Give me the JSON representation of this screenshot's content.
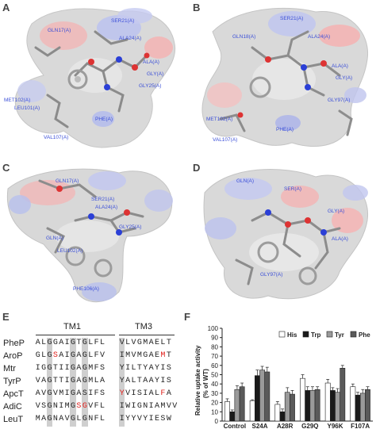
{
  "panels": {
    "A": {
      "letter": "A",
      "labels": [
        "GLN17(A)",
        "SER21(A)",
        "ALA24(A)",
        "GLY25(A)",
        "MET102(A)",
        "LEU101(A)",
        "PHE(A)",
        "VAL107(A)",
        "ALA(A)",
        "GLY(A)"
      ]
    },
    "B": {
      "letter": "B",
      "labels": [
        "SER21(A)",
        "GLN18(A)",
        "ALA24(A)",
        "ALA(A)",
        "GLY(A)",
        "MET102(A)",
        "VAL107(A)",
        "PHE(A)",
        "GLY97(A)"
      ]
    },
    "C": {
      "letter": "C",
      "labels": [
        "GLN17(A)",
        "SER21(A)",
        "ALA24(A)",
        "GLY25(A)",
        "LEU102(A)",
        "GLN(A)",
        "PHE106(A)"
      ]
    },
    "D": {
      "letter": "D",
      "labels": [
        "GLN(A)",
        "SER(A)",
        "GLY(A)",
        "ALA(A)",
        "GLY97(A)"
      ]
    }
  },
  "panelE": {
    "letter": "E",
    "tm1": "TM1",
    "tm3": "TM3",
    "rows": [
      {
        "name": "PheP",
        "tm1": "ALGGAIGTGLFL",
        "tm3": "VLVGMAELT"
      },
      {
        "name": "AroP",
        "tm1": "GLGSAIGAGLFV",
        "tm3": "IMVMGAEMT"
      },
      {
        "name": "Mtr",
        "tm1": "IGGTIIGAGMFS",
        "tm3": "YILTYAYIS"
      },
      {
        "name": "TyrP",
        "tm1": "VAGTTIGAGMLA",
        "tm3": "YALTAAYIS"
      },
      {
        "name": "ApcT",
        "tm1": "AVGVMIGASIFS",
        "tm3": "YVISIALFA"
      },
      {
        "name": "AdiC",
        "tm1": "VSGNIMGSGVFL",
        "tm3": "IWIGNIAMVV"
      },
      {
        "name": "LeuT",
        "tm1": "MAGNAVGLGNFL",
        "tm3": "IYYVYIESW"
      }
    ],
    "red_positions": {
      "AroP": {
        "tm1": [
          3
        ],
        "tm3": [
          7
        ]
      },
      "ApcT": {
        "tm1": [],
        "tm3": [
          0,
          7
        ]
      },
      "AdiC": {
        "tm1": [
          7,
          8
        ],
        "tm3": []
      }
    },
    "colors": {
      "highlight": "#e0201c",
      "shade": "#cfcfcf"
    }
  },
  "panelF": {
    "letter": "F",
    "chart_data": {
      "type": "bar",
      "categories": [
        "Control",
        "S24A",
        "A28R",
        "G29Q",
        "Y96K",
        "F107A"
      ],
      "series": [
        {
          "name": "His",
          "color": "#ffffff",
          "values": [
            21,
            22,
            18,
            46,
            41,
            37
          ],
          "errors": [
            3,
            1,
            3,
            4,
            4,
            3
          ]
        },
        {
          "name": "Trp",
          "color": "#1a1a1a",
          "values": [
            10,
            49,
            10,
            33,
            33,
            28
          ],
          "errors": [
            2,
            6,
            3,
            4,
            3,
            3
          ]
        },
        {
          "name": "Tyr",
          "color": "#9a9a9a",
          "values": [
            34,
            55,
            31,
            33,
            31,
            30
          ],
          "errors": [
            4,
            4,
            5,
            4,
            4,
            4
          ]
        },
        {
          "name": "Phe",
          "color": "#5a5a5a",
          "values": [
            37,
            53,
            29,
            34,
            57,
            34
          ],
          "errors": [
            4,
            5,
            4,
            3,
            3,
            3
          ]
        }
      ],
      "ylabel": "Relative uptake activity (% of WT)",
      "ylabel_line1": "Relative uptake activity",
      "ylabel_line2": "(% of WT)",
      "ylim": [
        0,
        100
      ],
      "yticks": [
        0,
        10,
        20,
        30,
        40,
        50,
        60,
        70,
        80,
        90,
        100
      ],
      "legend": "top-right",
      "grid": false
    }
  }
}
